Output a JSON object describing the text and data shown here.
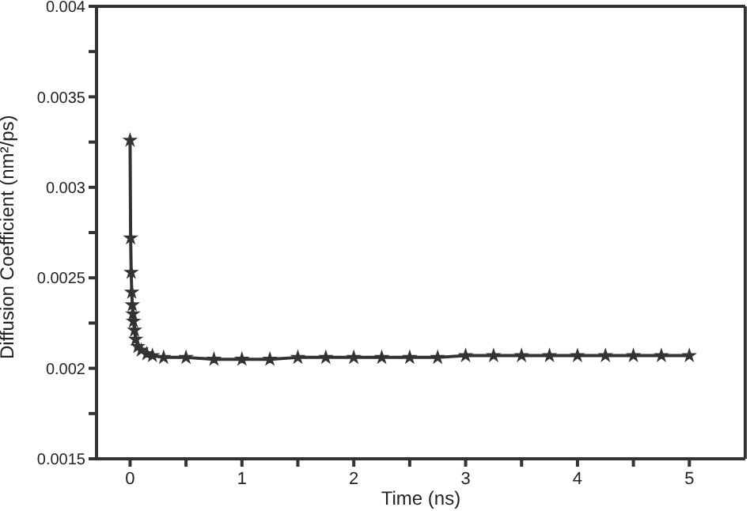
{
  "chart_data": {
    "type": "line",
    "xlabel": "Time  (ns)",
    "ylabel": "Diffusion Coefficient (nm²/ps)",
    "marker": "star",
    "line_style": "solid",
    "series": [
      {
        "color": "#333333",
        "x": [
          0,
          0.005,
          0.01,
          0.015,
          0.02,
          0.025,
          0.03,
          0.04,
          0.05,
          0.07,
          0.1,
          0.15,
          0.2,
          0.3,
          0.5,
          0.75,
          1,
          1.25,
          1.5,
          1.75,
          2,
          2.25,
          2.5,
          2.75,
          3,
          3.25,
          3.5,
          3.75,
          4,
          4.25,
          4.5,
          4.75,
          5
        ],
        "values": [
          0.00326,
          0.00272,
          0.00253,
          0.00242,
          0.00235,
          0.0023,
          0.00226,
          0.00221,
          0.00216,
          0.00212,
          0.0021,
          0.00208,
          0.00207,
          0.00206,
          0.00206,
          0.00205,
          0.00205,
          0.00205,
          0.00206,
          0.00206,
          0.00206,
          0.00206,
          0.00206,
          0.00206,
          0.00207,
          0.00207,
          0.00207,
          0.00207,
          0.00207,
          0.00207,
          0.00207,
          0.00207,
          0.00207
        ]
      }
    ],
    "xlim": [
      -0.3,
      5.5
    ],
    "xticks": [
      0,
      {
        "value": 0.5,
        "label": null
      },
      1,
      {
        "value": 1.5,
        "label": null
      },
      2,
      {
        "value": 2.5,
        "label": null
      },
      3,
      {
        "value": 3.5,
        "label": null
      },
      4,
      {
        "value": 4.5,
        "label": null
      },
      5
    ],
    "ylim": [
      0.0015,
      0.004
    ],
    "yticks": [
      0.0015,
      {
        "value": 0.00175,
        "label": null
      },
      0.002,
      {
        "value": 0.00225,
        "label": null
      },
      0.0025,
      {
        "value": 0.00275,
        "label": null
      },
      0.003,
      {
        "value": 0.00325,
        "label": null
      },
      0.0035,
      {
        "value": 0.00375,
        "label": null
      },
      0.004
    ]
  }
}
